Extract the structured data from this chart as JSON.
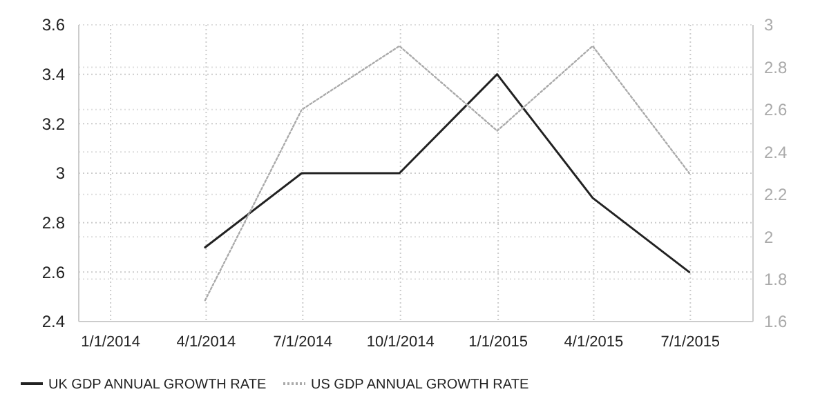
{
  "chart_data": {
    "type": "line",
    "x": [
      "2014-03-31",
      "2014-06-30",
      "2014-09-30",
      "2014-12-31",
      "2015-03-31",
      "2015-06-30"
    ],
    "series": [
      {
        "name": "UK GDP ANNUAL GROWTH RATE",
        "color": "#222222",
        "line_style": "solid",
        "values": [
          2.7,
          3.0,
          3.0,
          3.4,
          2.9,
          2.6
        ]
      },
      {
        "name": "US GDP ANNUAL GROWTH RATE",
        "color": "#aaaaaa",
        "line_style": "dotted",
        "axis": "y2",
        "values": [
          1.7,
          2.6,
          2.9,
          2.5,
          2.9,
          2.3
        ]
      }
    ],
    "xlim": [
      "2013-12-02",
      "2015-08-29"
    ],
    "xticks": [
      {
        "value": "2014-01-01",
        "label": "1/1/2014"
      },
      {
        "value": "2014-04-01",
        "label": "4/1/2014"
      },
      {
        "value": "2014-07-01",
        "label": "7/1/2014"
      },
      {
        "value": "2014-10-01",
        "label": "10/1/2014"
      },
      {
        "value": "2015-01-01",
        "label": "1/1/2015"
      },
      {
        "value": "2015-04-01",
        "label": "4/1/2015"
      },
      {
        "value": "2015-07-01",
        "label": "7/1/2015"
      }
    ],
    "ylim": [
      2.4,
      3.6
    ],
    "yticks": [
      2.4,
      2.6,
      2.8,
      3,
      3.2,
      3.4,
      3.6
    ],
    "y2lim": [
      1.6,
      3
    ],
    "y2ticks": [
      1.6,
      1.8,
      2,
      2.2,
      2.4,
      2.6,
      2.8,
      3
    ],
    "grid": true,
    "legend": "bottom left"
  }
}
